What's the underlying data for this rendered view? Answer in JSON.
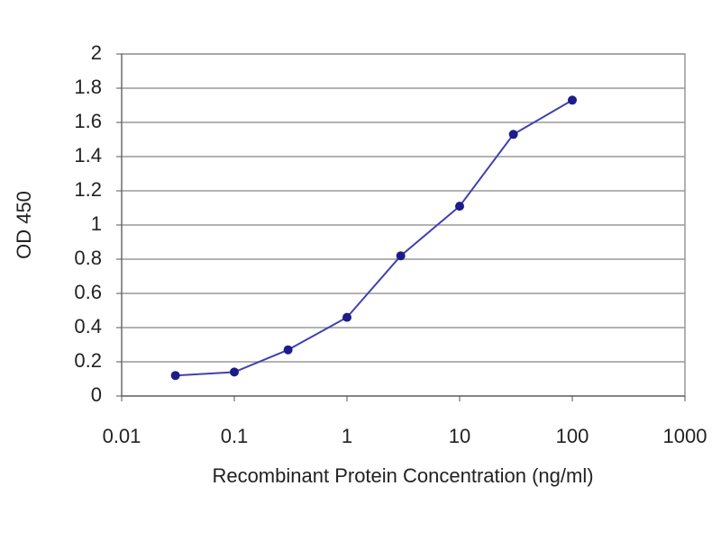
{
  "chart_data": {
    "type": "line",
    "x_label": "Recombinant Protein Concentration (ng/ml)",
    "y_label": "OD 450",
    "x": [
      0.03,
      0.1,
      0.3,
      1,
      3,
      10,
      30,
      100
    ],
    "series": [
      {
        "color": "#1c1c8a",
        "values": [
          0.12,
          0.14,
          0.27,
          0.46,
          0.82,
          1.11,
          1.53,
          1.73
        ]
      }
    ],
    "xscale": "log",
    "xlim": [
      0.01,
      1000
    ],
    "xticks": [
      0.01,
      0.1,
      1,
      10,
      100,
      1000
    ],
    "ylim": [
      0,
      2
    ],
    "yticks": [
      0,
      0.2,
      0.4,
      0.6,
      0.8,
      1,
      1.2,
      1.4,
      1.6,
      1.8,
      2
    ],
    "grid": true
  }
}
